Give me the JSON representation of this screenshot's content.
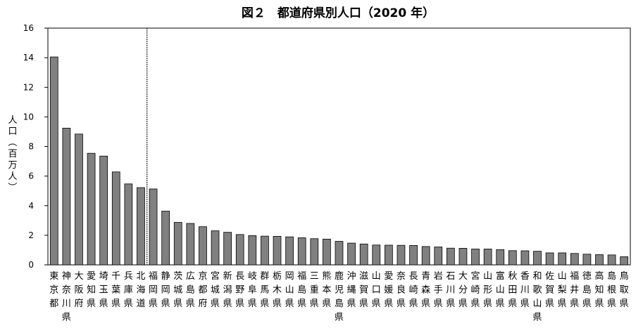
{
  "chart_data": {
    "type": "bar",
    "title": "図２　都道府県別人口（2020 年）",
    "ylabel": "人口（百万人）",
    "xlabel": "",
    "ylim": [
      0,
      16
    ],
    "yticks": [
      "0",
      "2",
      "4",
      "6",
      "8",
      "10",
      "12",
      "14",
      "16"
    ],
    "grid": false,
    "legend": "none",
    "bar_color": "#808080",
    "separator_after_index": 7,
    "categories": [
      "東京都",
      "神奈川県",
      "大阪府",
      "愛知県",
      "埼玉県",
      "千葉県",
      "兵庫県",
      "北海道",
      "福岡県",
      "静岡県",
      "茨城県",
      "広島県",
      "京都府",
      "宮城県",
      "新潟県",
      "長野県",
      "岐阜県",
      "群馬県",
      "栃木県",
      "岡山県",
      "福島県",
      "三重県",
      "熊本県",
      "鹿児島県",
      "沖縄県",
      "滋賀県",
      "山口県",
      "愛媛県",
      "奈良県",
      "長崎県",
      "青森県",
      "岩手県",
      "石川県",
      "大分県",
      "宮崎県",
      "山形県",
      "富山県",
      "秋田県",
      "香川県",
      "和歌山県",
      "佐賀県",
      "山梨県",
      "福井県",
      "徳島県",
      "高知県",
      "島根県",
      "鳥取県"
    ],
    "values": [
      14.05,
      9.24,
      8.84,
      7.54,
      7.35,
      6.28,
      5.47,
      5.22,
      5.13,
      3.63,
      2.87,
      2.8,
      2.58,
      2.3,
      2.2,
      2.05,
      1.98,
      1.94,
      1.93,
      1.89,
      1.83,
      1.77,
      1.74,
      1.59,
      1.47,
      1.41,
      1.34,
      1.33,
      1.32,
      1.31,
      1.24,
      1.21,
      1.13,
      1.12,
      1.07,
      1.07,
      1.03,
      0.96,
      0.95,
      0.92,
      0.81,
      0.81,
      0.77,
      0.72,
      0.69,
      0.67,
      0.55
    ]
  }
}
